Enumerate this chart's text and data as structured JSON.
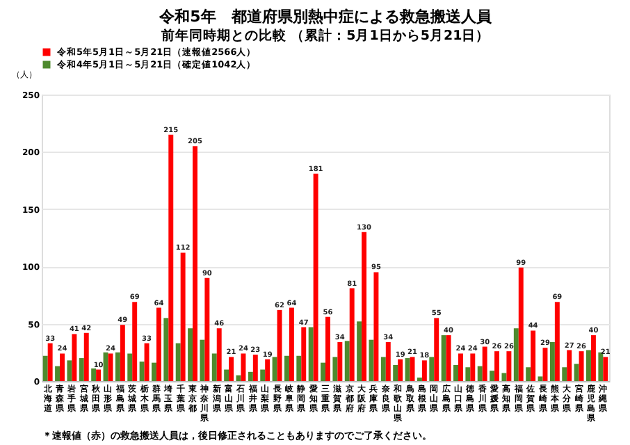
{
  "chart_data": {
    "type": "bar",
    "title": "令和5年　都道府県別熱中症による救急搬送人員",
    "subtitle": "前年同時期との比較 （累計：5月1日から5月21日）",
    "ylabel": "（人）",
    "categories": [
      "北海道",
      "青森県",
      "岩手県",
      "宮城県",
      "秋田県",
      "山形県",
      "福島県",
      "茨城県",
      "栃木県",
      "群馬県",
      "埼玉県",
      "千葉県",
      "東京都",
      "神奈川県",
      "新潟県",
      "富山県",
      "石川県",
      "福井県",
      "山梨県",
      "長野県",
      "岐阜県",
      "静岡県",
      "愛知県",
      "三重県",
      "滋賀県",
      "京都府",
      "大阪府",
      "兵庫県",
      "奈良県",
      "和歌山県",
      "鳥取県",
      "島根県",
      "岡山県",
      "広島県",
      "山口県",
      "徳島県",
      "香川県",
      "愛媛県",
      "高知県",
      "福岡県",
      "佐賀県",
      "長崎県",
      "熊本県",
      "大分県",
      "宮崎県",
      "鹿児島県",
      "沖縄県"
    ],
    "series": [
      {
        "name": "令和4年5月1日～5月21日（確定値1042人）",
        "color": "#4e8a2e",
        "values": [
          22,
          13,
          18,
          20,
          11,
          25,
          25,
          24,
          17,
          16,
          55,
          33,
          46,
          36,
          24,
          10,
          5,
          8,
          10,
          21,
          22,
          22,
          47,
          16,
          21,
          35,
          52,
          36,
          21,
          14,
          20,
          3,
          21,
          40,
          14,
          12,
          13,
          9,
          7,
          46,
          12,
          4,
          34,
          12,
          15,
          27,
          25
        ]
      },
      {
        "name": "令和5年5月1日～5月21日（速報値2566人）",
        "color": "#ff0000",
        "values": [
          33,
          24,
          41,
          42,
          10,
          24,
          49,
          69,
          33,
          64,
          215,
          112,
          205,
          90,
          46,
          21,
          24,
          23,
          19,
          62,
          64,
          47,
          181,
          56,
          34,
          81,
          130,
          95,
          34,
          19,
          21,
          18,
          55,
          40,
          24,
          24,
          30,
          26,
          26,
          99,
          44,
          29,
          69,
          27,
          26,
          40,
          21
        ],
        "data_labels": true
      }
    ],
    "ylim": [
      0,
      250
    ],
    "yticks": [
      0,
      50,
      100,
      150,
      200,
      250
    ],
    "grid": "y",
    "legend": "top",
    "annotations": [
      "＊速報値（赤）の救急搬送人員は，後日修正されることもありますのでご了承ください。"
    ]
  }
}
